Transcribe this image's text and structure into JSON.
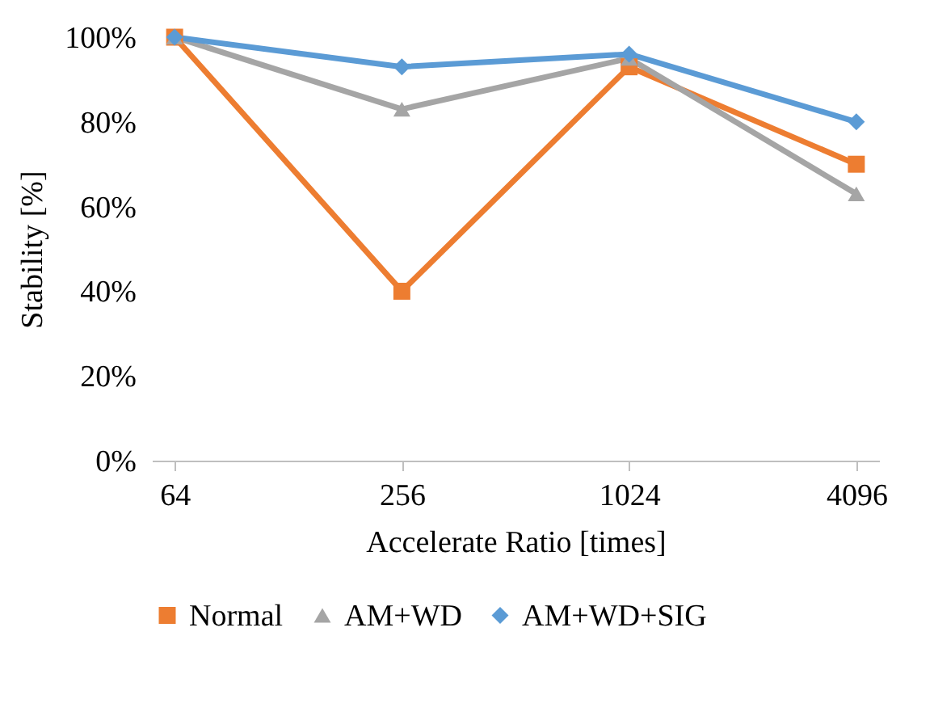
{
  "chart_data": {
    "type": "line",
    "xlabel": "Accelerate Ratio [times]",
    "ylabel": "Stability [%]",
    "categories": [
      "64",
      "256",
      "1024",
      "4096"
    ],
    "series": [
      {
        "name": "Normal",
        "color": "#ed7d31",
        "marker": "square",
        "values": [
          100,
          40,
          93,
          70
        ]
      },
      {
        "name": "AM+WD",
        "color": "#a5a5a5",
        "marker": "triangle",
        "values": [
          100,
          83,
          95,
          63
        ]
      },
      {
        "name": "AM+WD+SIG",
        "color": "#5b9bd5",
        "marker": "diamond",
        "values": [
          100,
          93,
          96,
          80
        ]
      }
    ],
    "ylim": [
      0,
      100
    ],
    "yticks": [
      {
        "value": 0,
        "label": "0%"
      },
      {
        "value": 20,
        "label": "20%"
      },
      {
        "value": 40,
        "label": "40%"
      },
      {
        "value": 60,
        "label": "60%"
      },
      {
        "value": 80,
        "label": "80%"
      },
      {
        "value": 100,
        "label": "100%"
      }
    ],
    "grid": false,
    "legend": "bottom",
    "line_style": "solid"
  }
}
